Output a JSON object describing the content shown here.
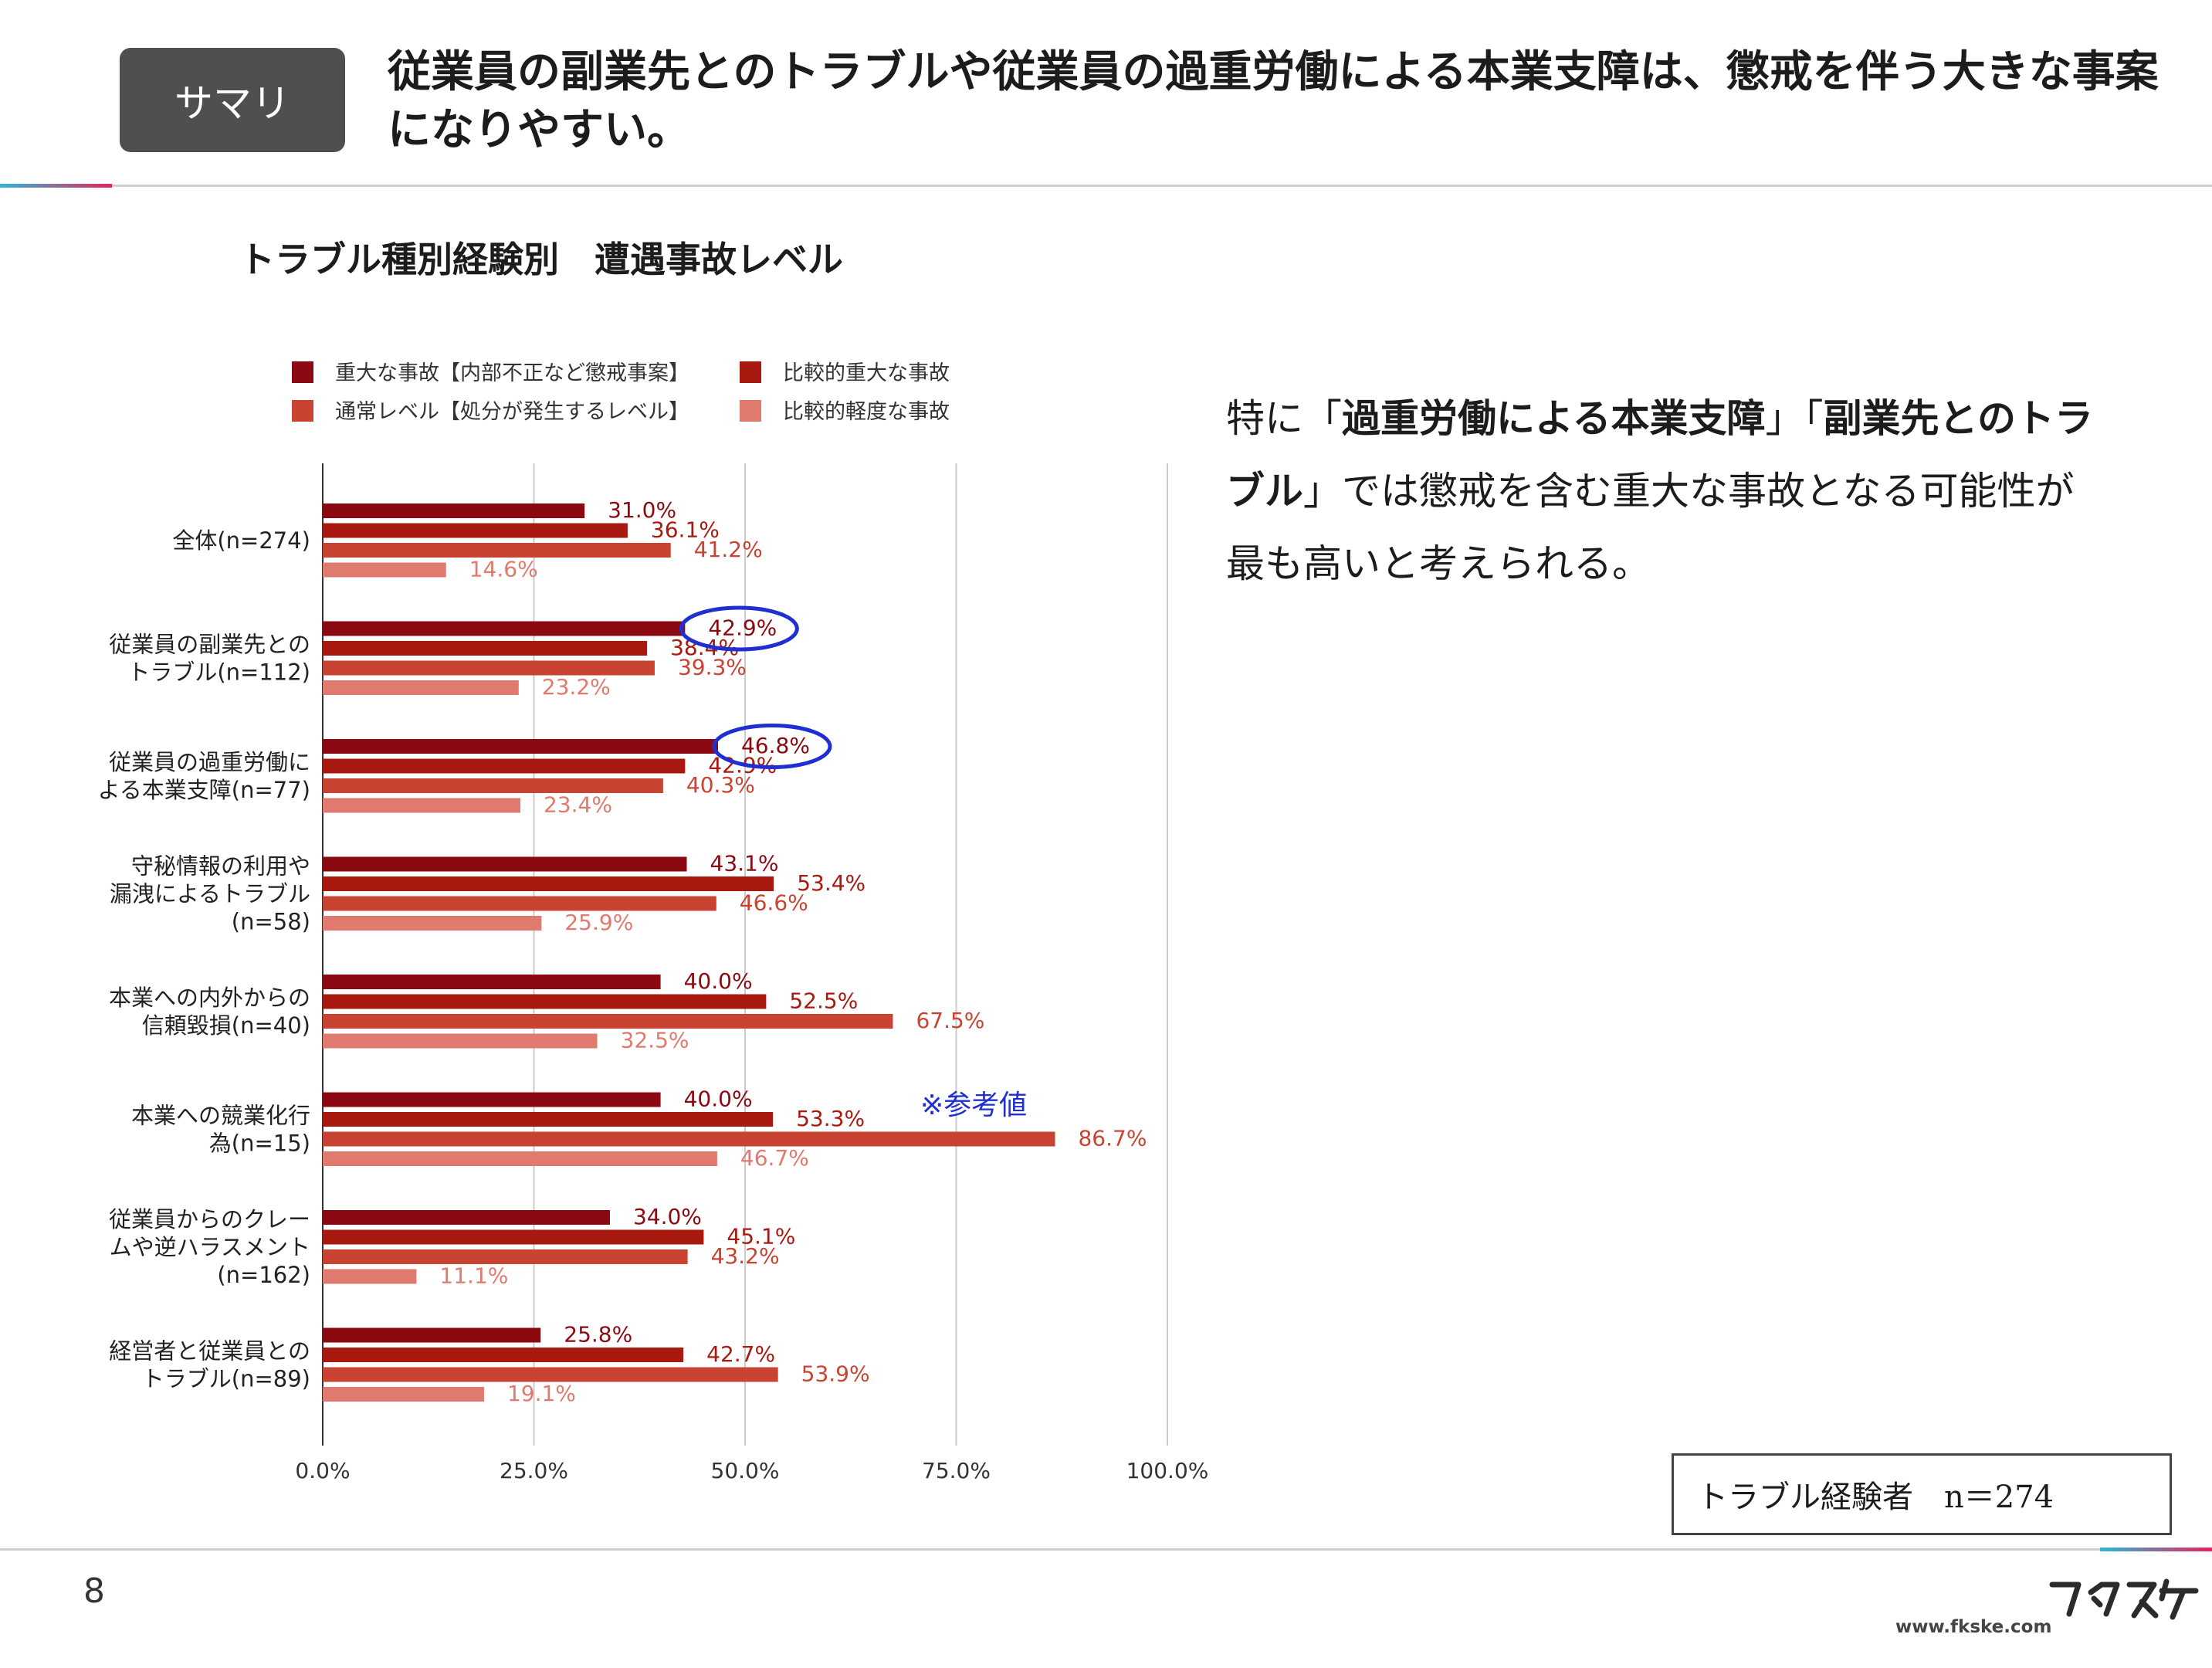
{
  "header": {
    "badge": "サマリ",
    "headline": "従業員の副業先とのトラブルや従業員の過重労働による本業支障は、懲戒を伴う大きな事案になりやすい。"
  },
  "chart_title": "トラブル種別経験別　遭遇事故レベル",
  "colors": {
    "serious": "#8b0a12",
    "relatively_serious": "#a8190f",
    "normal": "#c94332",
    "minor": "#e07a6e",
    "highlight": "#1f2fd1"
  },
  "chart_data": {
    "type": "bar",
    "orientation": "horizontal",
    "categories": [
      [
        "全体(n=274)"
      ],
      [
        "従業員の副業先との",
        "トラブル(n=112)"
      ],
      [
        "従業員の過重労働に",
        "よる本業支障(n=77)"
      ],
      [
        "守秘情報の利用や",
        "漏洩によるトラブル",
        "(n=58)"
      ],
      [
        "本業への内外からの",
        "信頼毀損(n=40)"
      ],
      [
        "本業への競業化行",
        "為(n=15)"
      ],
      [
        "従業員からのクレー",
        "ムや逆ハラスメント",
        "(n=162)"
      ],
      [
        "経営者と従業員との",
        "トラブル(n=89)"
      ]
    ],
    "series": [
      {
        "name": "重大な事故【内部不正など懲戒事案】",
        "values": [
          31.0,
          42.9,
          46.8,
          43.1,
          40.0,
          40.0,
          34.0,
          25.8
        ]
      },
      {
        "name": "比較的重大な事故",
        "values": [
          36.1,
          38.4,
          42.9,
          53.4,
          52.5,
          53.3,
          45.1,
          42.7
        ]
      },
      {
        "name": "通常レベル【処分が発生するレベル】",
        "values": [
          41.2,
          39.3,
          40.3,
          46.6,
          67.5,
          86.7,
          43.2,
          53.9
        ]
      },
      {
        "name": "比較的軽度な事故",
        "values": [
          14.6,
          23.2,
          23.4,
          25.9,
          32.5,
          46.7,
          11.1,
          19.1
        ]
      }
    ],
    "xlim": [
      0,
      100
    ],
    "ticks": [
      "0.0%",
      "25.0%",
      "50.0%",
      "75.0%",
      "100.0%"
    ],
    "legend_placement": "top",
    "grid": true,
    "highlighted": [
      {
        "category": 1,
        "series": 0
      },
      {
        "category": 2,
        "series": 0
      }
    ],
    "annotation": "※参考値"
  },
  "note": {
    "part1": "特に「",
    "bold1": "過重労働による本業支障",
    "part2": "」「",
    "bold2": "副業先とのトラブル",
    "part3": "」では懲戒を含む重大な事故となる可能性が最も高いと考えられる。"
  },
  "sample_box": "トラブル経験者　n＝274",
  "footer": {
    "page_number": "8",
    "logo_url": "www.fkske.com",
    "logo_icon": "fukusuke-logo"
  }
}
